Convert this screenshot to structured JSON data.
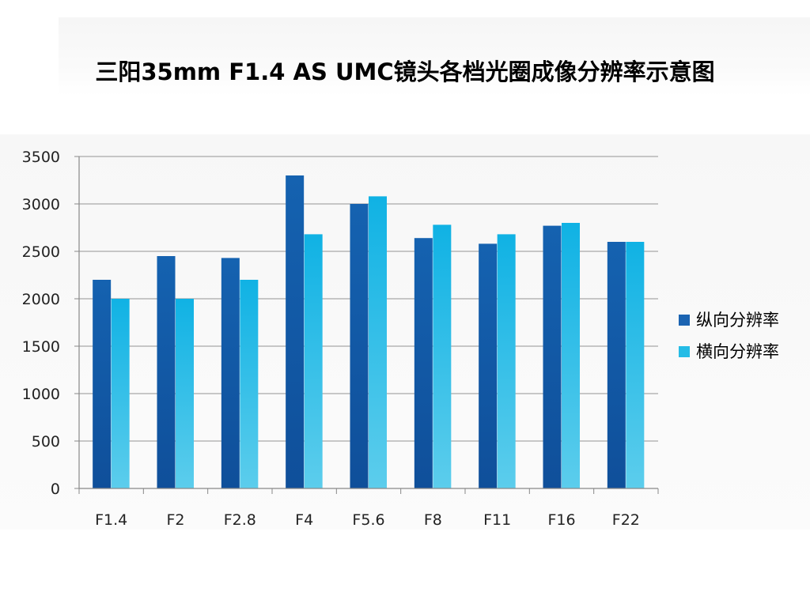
{
  "chart_data": {
    "type": "bar",
    "title": "三阳35mm F1.4 AS UMC镜头各档光圈成像分辨率示意图",
    "xlabel": "",
    "ylabel": "",
    "categories": [
      "F1.4",
      "F2",
      "F2.8",
      "F4",
      "F5.6",
      "F8",
      "F11",
      "F16",
      "F22"
    ],
    "series": [
      {
        "name": "纵向分辨率",
        "values": [
          2200,
          2450,
          2430,
          3300,
          3000,
          2640,
          2580,
          2770,
          2600
        ],
        "color": "#1b64b2"
      },
      {
        "name": "横向分辨率",
        "values": [
          2000,
          2000,
          2200,
          2680,
          3080,
          2780,
          2680,
          2800,
          2600
        ],
        "color": "#16b4e2"
      }
    ],
    "ylim": [
      0,
      3500
    ],
    "yticks": [
      0,
      500,
      1000,
      1500,
      2000,
      2500,
      3000,
      3500
    ],
    "grid": true,
    "legend": "right"
  }
}
